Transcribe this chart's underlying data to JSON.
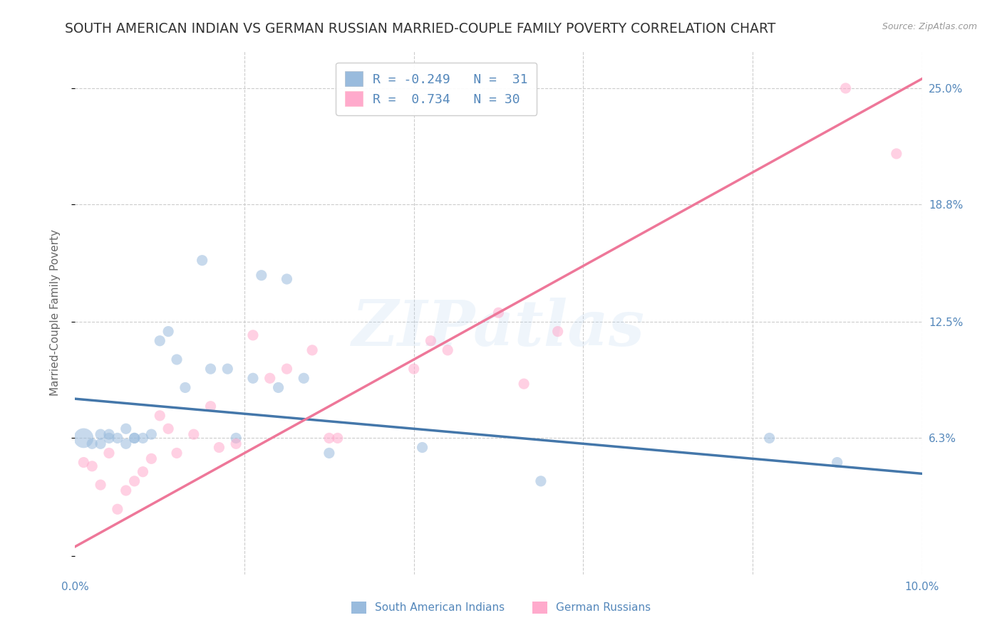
{
  "title": "SOUTH AMERICAN INDIAN VS GERMAN RUSSIAN MARRIED-COUPLE FAMILY POVERTY CORRELATION CHART",
  "source": "Source: ZipAtlas.com",
  "ylabel": "Married-Couple Family Poverty",
  "xlim": [
    0.0,
    0.1
  ],
  "ylim": [
    -0.01,
    0.27
  ],
  "ytick_positions": [
    0.0,
    0.063,
    0.125,
    0.188,
    0.25
  ],
  "ytick_labels": [
    "",
    "6.3%",
    "12.5%",
    "18.8%",
    "25.0%"
  ],
  "xtick_positions": [
    0.0,
    0.02,
    0.04,
    0.06,
    0.08,
    0.1
  ],
  "xticklabels": [
    "0.0%",
    "",
    "",
    "",
    "",
    "10.0%"
  ],
  "blue_color": "#99BBDD",
  "pink_color": "#FFAACC",
  "blue_line_color": "#4477AA",
  "pink_line_color": "#EE7799",
  "watermark": "ZIPatlas",
  "blue_scatter_x": [
    0.001,
    0.002,
    0.003,
    0.003,
    0.004,
    0.004,
    0.005,
    0.006,
    0.006,
    0.007,
    0.007,
    0.008,
    0.009,
    0.01,
    0.011,
    0.012,
    0.013,
    0.015,
    0.016,
    0.018,
    0.019,
    0.021,
    0.022,
    0.024,
    0.025,
    0.027,
    0.03,
    0.041,
    0.055,
    0.082,
    0.09
  ],
  "blue_scatter_y": [
    0.063,
    0.06,
    0.06,
    0.065,
    0.065,
    0.063,
    0.063,
    0.068,
    0.06,
    0.063,
    0.063,
    0.063,
    0.065,
    0.115,
    0.12,
    0.105,
    0.09,
    0.158,
    0.1,
    0.1,
    0.063,
    0.095,
    0.15,
    0.09,
    0.148,
    0.095,
    0.055,
    0.058,
    0.04,
    0.063,
    0.05
  ],
  "pink_scatter_x": [
    0.001,
    0.002,
    0.003,
    0.004,
    0.005,
    0.006,
    0.007,
    0.008,
    0.009,
    0.01,
    0.011,
    0.012,
    0.014,
    0.016,
    0.017,
    0.019,
    0.021,
    0.023,
    0.025,
    0.028,
    0.03,
    0.031,
    0.04,
    0.042,
    0.044,
    0.05,
    0.053,
    0.057,
    0.091,
    0.097
  ],
  "pink_scatter_y": [
    0.05,
    0.048,
    0.038,
    0.055,
    0.025,
    0.035,
    0.04,
    0.045,
    0.052,
    0.075,
    0.068,
    0.055,
    0.065,
    0.08,
    0.058,
    0.06,
    0.118,
    0.095,
    0.1,
    0.11,
    0.063,
    0.063,
    0.1,
    0.115,
    0.11,
    0.13,
    0.092,
    0.12,
    0.25,
    0.215
  ],
  "blue_trend_x": [
    0.0,
    0.1
  ],
  "blue_trend_y": [
    0.084,
    0.044
  ],
  "pink_trend_x": [
    0.0,
    0.1
  ],
  "pink_trend_y": [
    0.005,
    0.255
  ],
  "scatter_size_blue": 120,
  "scatter_size_blue_first": 400,
  "scatter_size_pink": 120,
  "scatter_alpha": 0.55,
  "grid_color": "#CCCCCC",
  "bg_color": "#FFFFFF",
  "title_fontsize": 13.5,
  "axis_label_fontsize": 11,
  "tick_fontsize": 11,
  "legend_fontsize": 13
}
